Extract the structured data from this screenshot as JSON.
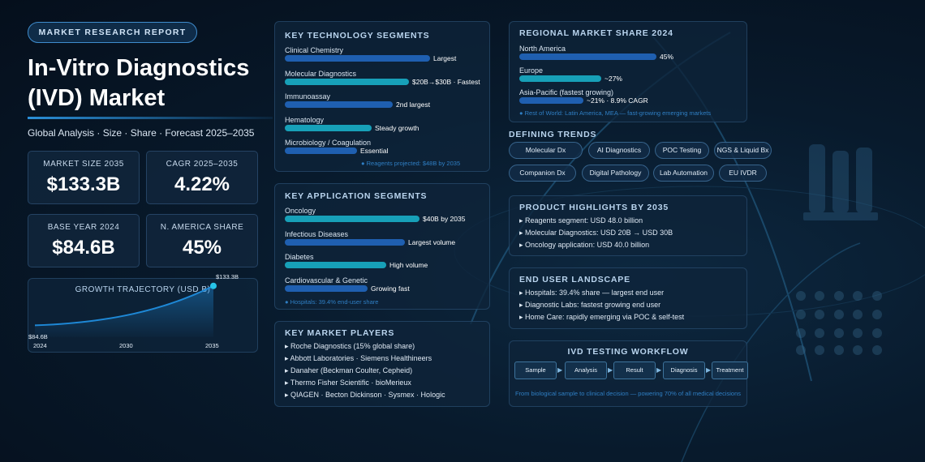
{
  "header": {
    "badge": "MARKET RESEARCH REPORT",
    "title_line1": "In-Vitro Diagnostics",
    "title_line2": "(IVD) Market",
    "subtitle": "Global Analysis · Size · Share · Forecast 2025–2035"
  },
  "stats": [
    {
      "label": "MARKET SIZE 2035",
      "value": "$133.3B"
    },
    {
      "label": "CAGR 2025–2035",
      "value": "4.22%"
    },
    {
      "label": "BASE YEAR 2024",
      "value": "$84.6B"
    },
    {
      "label": "N. AMERICA SHARE",
      "value": "45%"
    }
  ],
  "growth": {
    "title": "GROWTH TRAJECTORY (USD B)",
    "start_label": "$84.6B",
    "end_label": "$133.3B",
    "start_value": 84.6,
    "end_value": 133.3,
    "x_ticks": [
      "2024",
      "2030",
      "2035"
    ]
  },
  "tech": {
    "title": "KEY TECHNOLOGY SEGMENTS",
    "items": [
      {
        "label": "Clinical Chemistry",
        "note": "Largest",
        "fill": 0.7,
        "color": "#1f5fb0"
      },
      {
        "label": "Molecular Diagnostics",
        "note": "$20B→$30B · Fastest",
        "fill": 0.6,
        "color": "#17a0b8"
      },
      {
        "label": "Immunoassay",
        "note": "2nd largest",
        "fill": 0.52,
        "color": "#1f5fb0"
      },
      {
        "label": "Hematology",
        "note": "Steady growth",
        "fill": 0.42,
        "color": "#17a0b8"
      },
      {
        "label": "Microbiology / Coagulation",
        "note": "Essential",
        "fill": 0.35,
        "color": "#1f5fb0"
      }
    ],
    "footnote": "● Reagents projected: $48B by 2035"
  },
  "app": {
    "title": "KEY APPLICATION SEGMENTS",
    "items": [
      {
        "label": "Oncology",
        "note": "$40B by 2035",
        "fill": 0.65,
        "color": "#17a0b8"
      },
      {
        "label": "Infectious Diseases",
        "note": "Largest volume",
        "fill": 0.58,
        "color": "#1f5fb0"
      },
      {
        "label": "Diabetes",
        "note": "High volume",
        "fill": 0.49,
        "color": "#17a0b8"
      },
      {
        "label": "Cardiovascular & Genetic",
        "note": "Growing fast",
        "fill": 0.4,
        "color": "#1f5fb0"
      }
    ],
    "footnote": "● Hospitals: 39.4% end-user share"
  },
  "players": {
    "title": "KEY MARKET PLAYERS",
    "items": [
      "▸ Roche Diagnostics (15% global share)",
      "▸ Abbott Laboratories · Siemens Healthineers",
      "▸ Danaher (Beckman Coulter, Cepheid)",
      "▸ Thermo Fisher Scientific · bioMerieux",
      "▸ QIAGEN · Becton Dickinson · Sysmex · Hologic"
    ]
  },
  "regional": {
    "title": "REGIONAL MARKET SHARE 2024",
    "items": [
      {
        "label": "North America",
        "note": "45%",
        "fill": 0.45,
        "color": "#1f5fb0"
      },
      {
        "label": "Europe",
        "note": "~27%",
        "fill": 0.27,
        "color": "#17a0b8"
      },
      {
        "label": "Asia-Pacific (fastest growing)",
        "note": "~21% · 8.9% CAGR",
        "fill": 0.21,
        "color": "#1f5fb0"
      }
    ],
    "footnote": "● Rest of World: Latin America, MEA — fast-growing emerging markets"
  },
  "trends": {
    "title": "DEFINING TRENDS",
    "items": [
      "Molecular Dx",
      "AI Diagnostics",
      "POC Testing",
      "NGS & Liquid Bx",
      "Companion Dx",
      "Digital Pathology",
      "Lab Automation",
      "EU IVDR"
    ]
  },
  "products": {
    "title": "PRODUCT HIGHLIGHTS BY 2035",
    "items": [
      "▸ Reagents segment: USD 48.0 billion",
      "▸ Molecular Diagnostics: USD 20B → USD 30B",
      "▸ Oncology application: USD 40.0 billion"
    ]
  },
  "endusers": {
    "title": "END USER LANDSCAPE",
    "items": [
      "▸ Hospitals: 39.4% share — largest end user",
      "▸ Diagnostic Labs: fastest growing end user",
      "▸ Home Care: rapidly emerging via POC & self-test"
    ]
  },
  "workflow": {
    "title": "IVD TESTING WORKFLOW",
    "steps": [
      "Sample",
      "Analysis",
      "Result",
      "Diagnosis",
      "Treatment"
    ],
    "caption": "From biological sample to clinical decision — powering 70% of all medical decisions"
  },
  "colors": {
    "accent_teal": "#17a0b8",
    "accent_blue": "#1f5fb0",
    "chart_line": "#1e88d6"
  }
}
